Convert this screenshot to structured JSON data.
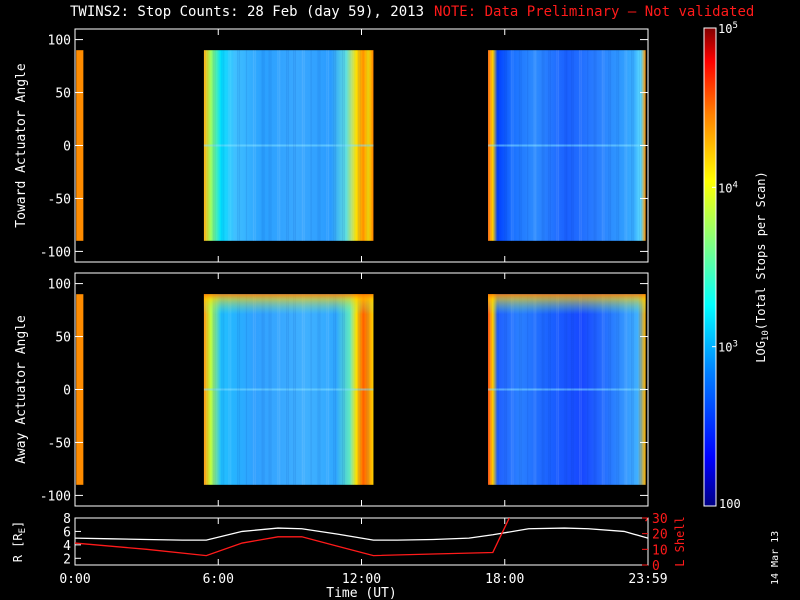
{
  "title": {
    "text": "TWINS2: Stop Counts: 28 Feb (day  59), 2013",
    "note": "NOTE: Data Preliminary — Not validated",
    "note_color": "#ff1a1a"
  },
  "date_stamp": "14 Mar 13",
  "chart_data": [
    {
      "type": "heatmap",
      "panel": "toward",
      "ylabel": "Toward Actuator Angle",
      "ylim": [
        -110,
        110
      ],
      "yticks": [
        -100,
        -50,
        0,
        50,
        100
      ],
      "xlim": [
        0,
        24
      ],
      "angle_range": [
        -90,
        90
      ],
      "data_intervals_hours": [
        [
          0.05,
          0.35
        ],
        [
          5.4,
          12.5
        ],
        [
          17.3,
          23.9
        ]
      ],
      "grid": false
    },
    {
      "type": "heatmap",
      "panel": "away",
      "ylabel": "Away Actuator Angle",
      "ylim": [
        -110,
        110
      ],
      "yticks": [
        -100,
        -50,
        0,
        50,
        100
      ],
      "xlim": [
        0,
        24
      ],
      "angle_range": [
        -90,
        90
      ],
      "data_intervals_hours": [
        [
          0.05,
          0.35
        ],
        [
          5.4,
          12.5
        ],
        [
          17.3,
          23.9
        ]
      ],
      "grid": false
    },
    {
      "type": "line",
      "panel": "orbit",
      "xlabel": "Time (UT)",
      "xticks": [
        "0:00",
        "6:00",
        "12:00",
        "18:00",
        "23:59"
      ],
      "xtick_hours": [
        0,
        6,
        12,
        18,
        24
      ],
      "ylabel": "R [R",
      "ylabel_sub": "E",
      "ylim": [
        1,
        8
      ],
      "yticks": [
        2,
        4,
        6,
        8
      ],
      "y2label": "L Shell",
      "y2lim": [
        0,
        30
      ],
      "y2ticks": [
        0,
        10,
        20,
        30
      ],
      "series": [
        {
          "name": "R [RE]",
          "color": "#ffffff",
          "axis": "left",
          "x": [
            0,
            1.5,
            3,
            4.5,
            5.5,
            7,
            8.5,
            9.5,
            11,
            12.5,
            13.5,
            15,
            16.5,
            17.5,
            19,
            20.5,
            21.5,
            23,
            24
          ],
          "y": [
            5.0,
            4.9,
            4.8,
            4.7,
            4.7,
            6.0,
            6.5,
            6.4,
            5.6,
            4.7,
            4.7,
            4.8,
            5.0,
            5.5,
            6.4,
            6.5,
            6.4,
            6.0,
            5.0
          ]
        },
        {
          "name": "L Shell",
          "color": "#ff1a1a",
          "axis": "right",
          "x": [
            0,
            1.5,
            3,
            5.5,
            7,
            8.5,
            9.5,
            11,
            12.5,
            15,
            17.5,
            18.5
          ],
          "y": [
            14,
            12,
            10,
            6,
            14,
            18,
            18,
            12,
            6,
            7,
            8,
            40
          ]
        },
        {
          "name": "L Shell (end)",
          "color": "#ff1a1a",
          "axis": "right",
          "x": [
            23.9,
            24
          ],
          "y": [
            28,
            30
          ]
        }
      ]
    }
  ],
  "colorbar": {
    "label": "LOG",
    "label_sub": "10",
    "label_rest": "(Total Stops per Scan)",
    "min_label": "100",
    "min": 100,
    "max": 100000,
    "tick_values": [
      1000,
      10000,
      100000
    ],
    "tick_labels": [
      "10",
      "10",
      "10"
    ],
    "tick_exponents": [
      "3",
      "4",
      "5"
    ],
    "scale": "log",
    "colors": [
      "#000084",
      "#0000ff",
      "#0080ff",
      "#00ffff",
      "#80ff80",
      "#ffff00",
      "#ff8000",
      "#ff0000",
      "#800000"
    ]
  }
}
